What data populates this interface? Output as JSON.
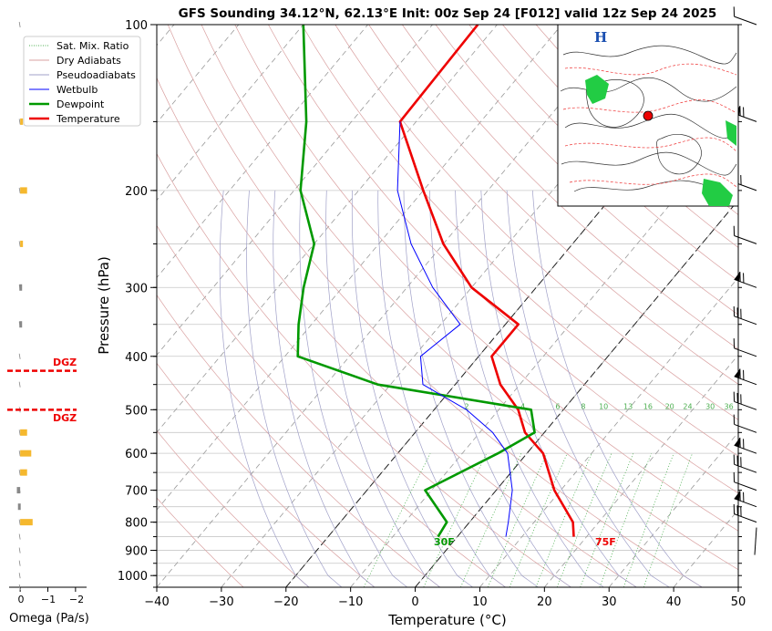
{
  "title": "GFS Sounding 34.12°N, 62.13°E Init: 00z Sep 24 [F012] valid 12z Sep 24 2025",
  "xlabel": "Temperature (°C)",
  "ylabel": "Pressure (hPa)",
  "omega_label": "Omega (Pa/s)",
  "omega_ticks": [
    "0",
    "−1",
    "−2"
  ],
  "legend": {
    "items": [
      {
        "label": "Sat. Mix. Ratio",
        "color": "#4caf50",
        "style": "dotted"
      },
      {
        "label": "Dry Adiabats",
        "color": "#d9a0a0",
        "style": "solid"
      },
      {
        "label": "Pseudoadiabats",
        "color": "#a0a0c8",
        "style": "solid"
      },
      {
        "label": "Wetbulb",
        "color": "#0000ff",
        "style": "solid"
      },
      {
        "label": "Dewpoint",
        "color": "#009900",
        "style": "thick"
      },
      {
        "label": "Temperature",
        "color": "#ee0000",
        "style": "thick"
      }
    ]
  },
  "surface_labels": {
    "dewpoint": "30F",
    "temperature": "75F"
  },
  "dgz_label": "DGZ",
  "map_high_label": "H",
  "mixing_ratio_labels": [
    "2",
    "4",
    "6",
    "8",
    "10",
    "13",
    "16",
    "20",
    "24",
    "30",
    "36"
  ],
  "chart_data": {
    "type": "line",
    "skew_t": true,
    "x_ticks": [
      -40,
      -30,
      -20,
      -10,
      0,
      10,
      20,
      30,
      40,
      50
    ],
    "x_tick_labels": [
      "−40",
      "−30",
      "−20",
      "−10",
      "0",
      "10",
      "20",
      "30",
      "40",
      "50"
    ],
    "xlim": [
      -40,
      50
    ],
    "y_ticks": [
      100,
      200,
      300,
      400,
      500,
      600,
      700,
      800,
      900,
      1000
    ],
    "y_tick_labels": [
      "100",
      "200",
      "300",
      "400",
      "500",
      "600",
      "700",
      "800",
      "900",
      "1000"
    ],
    "ylim": [
      1050,
      100
    ],
    "y_scale": "log",
    "grid": true,
    "legend_position": "top-left",
    "series": [
      {
        "name": "Temperature",
        "color": "#ee0000",
        "points": [
          [
            100,
            -63
          ],
          [
            150,
            -62.5
          ],
          [
            200,
            -50
          ],
          [
            250,
            -40
          ],
          [
            300,
            -30
          ],
          [
            350,
            -18
          ],
          [
            400,
            -18
          ],
          [
            450,
            -13
          ],
          [
            500,
            -7
          ],
          [
            550,
            -3
          ],
          [
            600,
            2.5
          ],
          [
            700,
            9
          ],
          [
            800,
            16
          ],
          [
            850,
            18
          ]
        ]
      },
      {
        "name": "Dewpoint",
        "color": "#009900",
        "points": [
          [
            100,
            -90
          ],
          [
            150,
            -77
          ],
          [
            200,
            -69
          ],
          [
            250,
            -60
          ],
          [
            300,
            -56
          ],
          [
            350,
            -52
          ],
          [
            400,
            -48
          ],
          [
            450,
            -32
          ],
          [
            500,
            -5
          ],
          [
            550,
            -1.5
          ],
          [
            600,
            -4.5
          ],
          [
            700,
            -11
          ],
          [
            800,
            -3.5
          ],
          [
            850,
            -3
          ]
        ]
      },
      {
        "name": "Wetbulb",
        "color": "#0000ff",
        "points": [
          [
            150,
            -62.5
          ],
          [
            200,
            -54
          ],
          [
            250,
            -45
          ],
          [
            300,
            -36
          ],
          [
            350,
            -27
          ],
          [
            400,
            -29
          ],
          [
            450,
            -25
          ],
          [
            500,
            -15
          ],
          [
            550,
            -8
          ],
          [
            600,
            -3
          ],
          [
            700,
            2.5
          ],
          [
            800,
            6
          ],
          [
            850,
            7.5
          ]
        ]
      }
    ],
    "dgz_pressures": [
      425,
      500
    ],
    "omega": {
      "xlim": [
        0.4,
        -2.4
      ],
      "bars": [
        {
          "p": 150,
          "w": -0.1,
          "color": "#f5b82e"
        },
        {
          "p": 200,
          "w": -0.25,
          "color": "#f5b82e"
        },
        {
          "p": 250,
          "w": -0.1,
          "color": "#f5b82e"
        },
        {
          "p": 300,
          "w": 0.03,
          "color": "#888888"
        },
        {
          "p": 350,
          "w": 0.03,
          "color": "#888888"
        },
        {
          "p": 550,
          "w": -0.25,
          "color": "#f5b82e"
        },
        {
          "p": 600,
          "w": -0.4,
          "color": "#f5b82e"
        },
        {
          "p": 650,
          "w": -0.25,
          "color": "#f5b82e"
        },
        {
          "p": 700,
          "w": 0.12,
          "color": "#888888"
        },
        {
          "p": 750,
          "w": 0.08,
          "color": "#888888"
        },
        {
          "p": 800,
          "w": -0.45,
          "color": "#f5b82e"
        }
      ]
    },
    "wind_barbs_hpa": [
      100,
      150,
      200,
      250,
      300,
      350,
      400,
      450,
      500,
      550,
      600,
      650,
      700,
      750,
      800,
      850
    ]
  }
}
